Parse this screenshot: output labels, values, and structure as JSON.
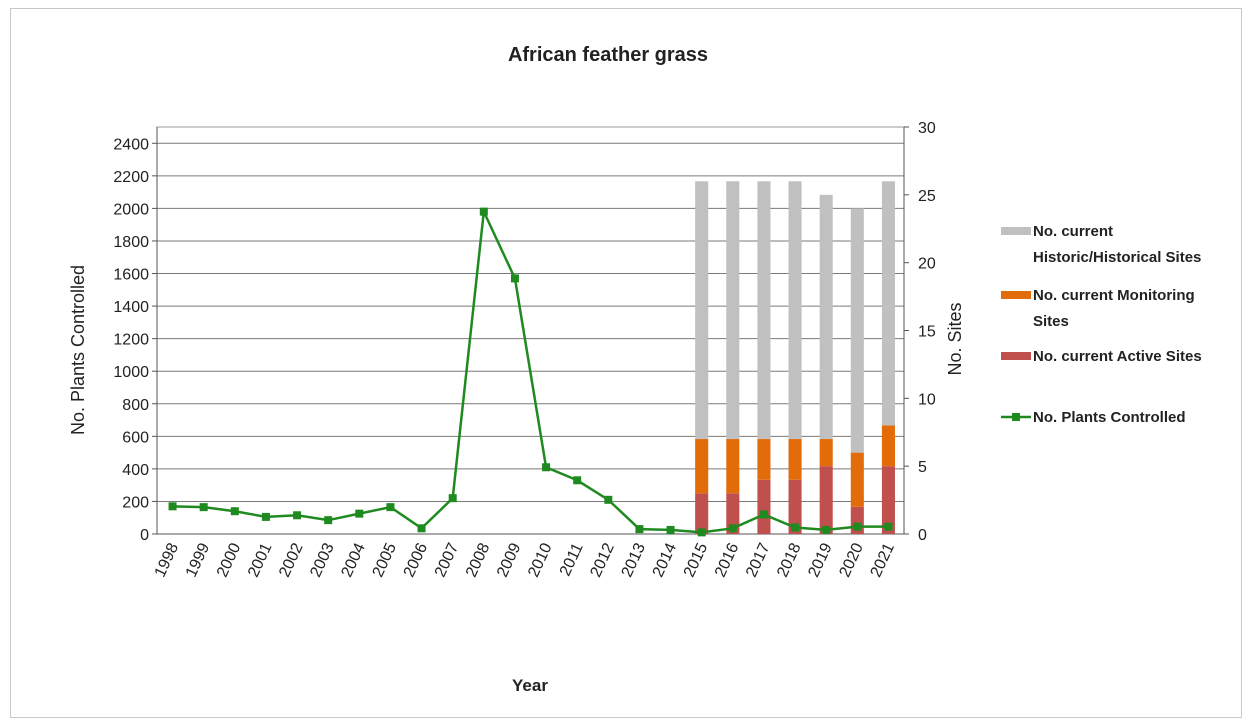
{
  "chart_data": {
    "type": "bar",
    "title": "African feather grass",
    "xlabel": "Year",
    "ylabel_left": "No. Plants Controlled",
    "ylabel_right": "No. Sites",
    "ylim_left": [
      0,
      2500
    ],
    "ylim_right": [
      0,
      30
    ],
    "yticks_left": [
      "0",
      "200",
      "400",
      "600",
      "800",
      "1000",
      "1200",
      "1400",
      "1600",
      "1800",
      "2000",
      "2200",
      "2400"
    ],
    "yticks_right": [
      "0",
      "5",
      "10",
      "15",
      "20",
      "25",
      "30"
    ],
    "grid": true,
    "legend_position": "right",
    "categories": [
      "1998",
      "1999",
      "2000",
      "2001",
      "2002",
      "2003",
      "2004",
      "2005",
      "2006",
      "2007",
      "2008",
      "2009",
      "2010",
      "2011",
      "2012",
      "2013",
      "2014",
      "2015",
      "2016",
      "2017",
      "2018",
      "2019",
      "2020",
      "2021"
    ],
    "line_series": {
      "name": "No. Plants Controlled",
      "axis": "left",
      "color": "#1f8a1f",
      "values": [
        170,
        165,
        140,
        105,
        115,
        85,
        125,
        165,
        35,
        220,
        1980,
        1570,
        410,
        330,
        210,
        30,
        25,
        10,
        35,
        120,
        40,
        25,
        45,
        45
      ]
    },
    "bar_series": [
      {
        "name": "No. current Active Sites",
        "axis": "right",
        "color": "#c0504d",
        "values": [
          null,
          null,
          null,
          null,
          null,
          null,
          null,
          null,
          null,
          null,
          null,
          null,
          null,
          null,
          null,
          null,
          null,
          3,
          3,
          4,
          4,
          5,
          2,
          5
        ]
      },
      {
        "name": "No. current Monitoring Sites",
        "axis": "right",
        "color": "#e36c0a",
        "values": [
          null,
          null,
          null,
          null,
          null,
          null,
          null,
          null,
          null,
          null,
          null,
          null,
          null,
          null,
          null,
          null,
          null,
          4,
          4,
          3,
          3,
          2,
          4,
          3
        ]
      },
      {
        "name": "No. current Historic/Historical Sites",
        "axis": "right",
        "color": "#c0c0c0",
        "values": [
          null,
          null,
          null,
          null,
          null,
          null,
          null,
          null,
          null,
          null,
          null,
          null,
          null,
          null,
          null,
          null,
          null,
          19,
          19,
          19,
          19,
          18,
          18,
          18
        ]
      }
    ],
    "legend": [
      {
        "key": "historic",
        "lines": [
          "No. current",
          "Historic/Historical Sites"
        ],
        "color": "#c0c0c0",
        "kind": "bar"
      },
      {
        "key": "monitoring",
        "lines": [
          "No. current Monitoring",
          "Sites"
        ],
        "color": "#e36c0a",
        "kind": "bar"
      },
      {
        "key": "active",
        "lines": [
          "No. current Active Sites"
        ],
        "color": "#c0504d",
        "kind": "bar"
      },
      {
        "key": "plants",
        "lines": [
          "No. Plants Controlled"
        ],
        "color": "#1f8a1f",
        "kind": "line"
      }
    ]
  }
}
